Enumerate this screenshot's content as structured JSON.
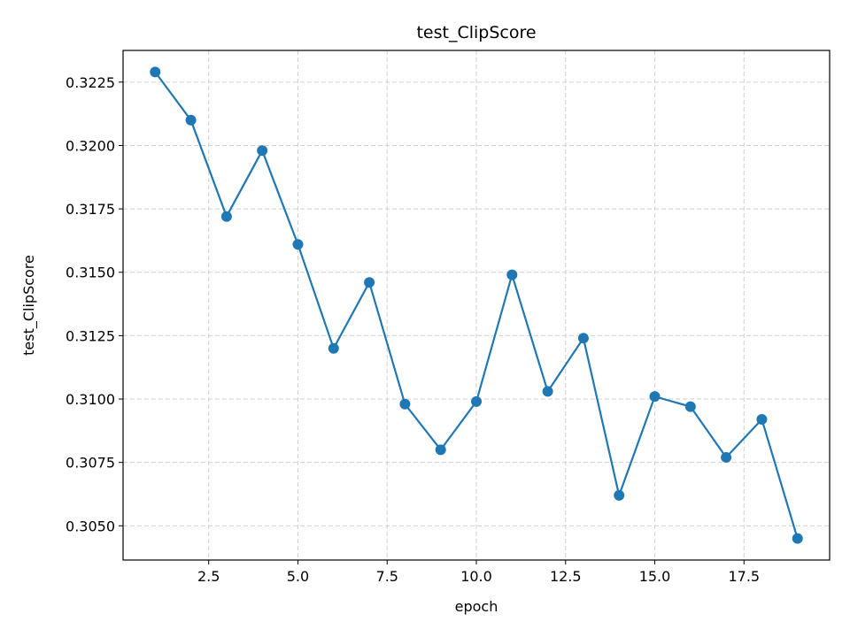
{
  "chart_data": {
    "type": "line",
    "title": "test_ClipScore",
    "xlabel": "epoch",
    "ylabel": "test_ClipScore",
    "grid": true,
    "xlim": [
      0.1,
      19.9
    ],
    "ylim": [
      0.30365,
      0.32375
    ],
    "xticks": [
      2.5,
      5.0,
      7.5,
      10.0,
      12.5,
      15.0,
      17.5
    ],
    "xtick_labels": [
      "2.5",
      "5.0",
      "7.5",
      "10.0",
      "12.5",
      "15.0",
      "17.5"
    ],
    "yticks": [
      0.305,
      0.3075,
      0.31,
      0.3125,
      0.315,
      0.3175,
      0.32,
      0.3225
    ],
    "ytick_labels": [
      "0.3050",
      "0.3075",
      "0.3100",
      "0.3125",
      "0.3150",
      "0.3175",
      "0.3200",
      "0.3225"
    ],
    "series": [
      {
        "color": "#1f77b4",
        "marker": "circle",
        "x": [
          1,
          2,
          3,
          4,
          5,
          6,
          7,
          8,
          9,
          10,
          11,
          12,
          13,
          14,
          15,
          16,
          17,
          18,
          19
        ],
        "y": [
          0.3229,
          0.321,
          0.3172,
          0.3198,
          0.3161,
          0.312,
          0.3146,
          0.3098,
          0.308,
          0.3099,
          0.3149,
          0.3103,
          0.3124,
          0.3062,
          0.3101,
          0.3097,
          0.3077,
          0.3092,
          0.3045
        ]
      }
    ]
  }
}
